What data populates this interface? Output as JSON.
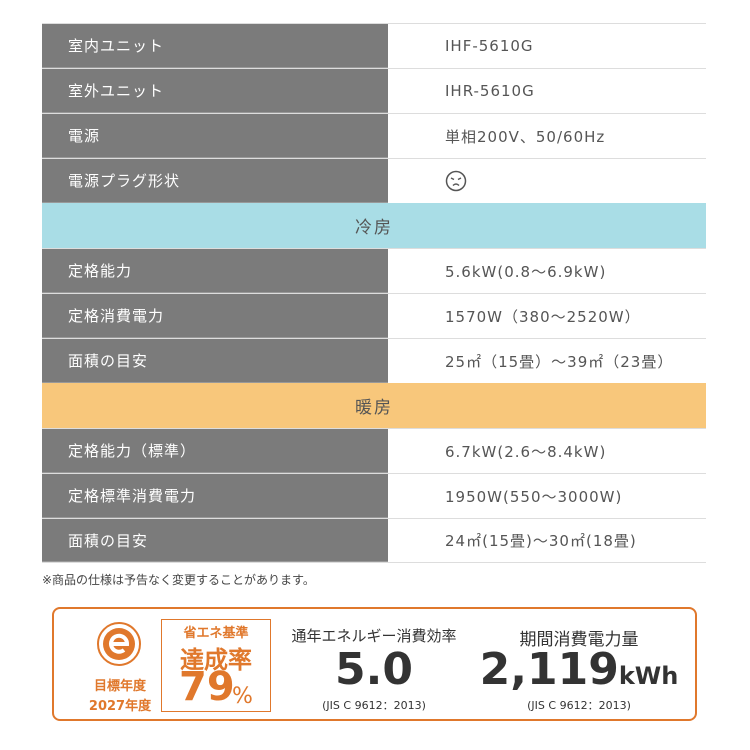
{
  "table": {
    "rows": [
      {
        "label": "室内ユニット",
        "value": "IHF-5610G"
      },
      {
        "label": "室外ユニット",
        "value": "IHR-5610G"
      },
      {
        "label": "電源",
        "value": "単相200V、50/60Hz"
      },
      {
        "label": "電源プラグ形状"
      },
      {
        "section": "冷房",
        "color": "#a9dde6"
      },
      {
        "label": "定格能力",
        "value": "5.6kW(0.8〜6.9kW)"
      },
      {
        "label": "定格消費電力",
        "value": "1570W（380〜2520W）"
      },
      {
        "label": "面積の目安",
        "value": "25㎡（15畳）〜39㎡（23畳）"
      },
      {
        "section": "暖房",
        "color": "#f8c77b"
      },
      {
        "label": "定格能力（標準）",
        "value": "6.7kW(2.6〜8.4kW)"
      },
      {
        "label": "定格標準消費電力",
        "value": "1950W(550〜3000W)"
      },
      {
        "label": "面積の目安",
        "value": "24㎡(15畳)〜30㎡(18畳)"
      }
    ]
  },
  "note": "※商品の仕様は予告なく変更することがあります。",
  "energy_label": {
    "target_year_label": "目標年度",
    "target_year": "2027年度",
    "standard_label": "省エネ基準",
    "rate_label": "達成率",
    "rate": "79",
    "rate_unit": "%",
    "efficiency_label": "通年エネルギー消費効率",
    "efficiency": "5.0",
    "efficiency_note": "(JIS C 9612：2013)",
    "consumption_label": "期間消費電力量",
    "consumption": "2,119",
    "consumption_unit": "kWh",
    "consumption_note": "(JIS C 9612：2013)"
  }
}
